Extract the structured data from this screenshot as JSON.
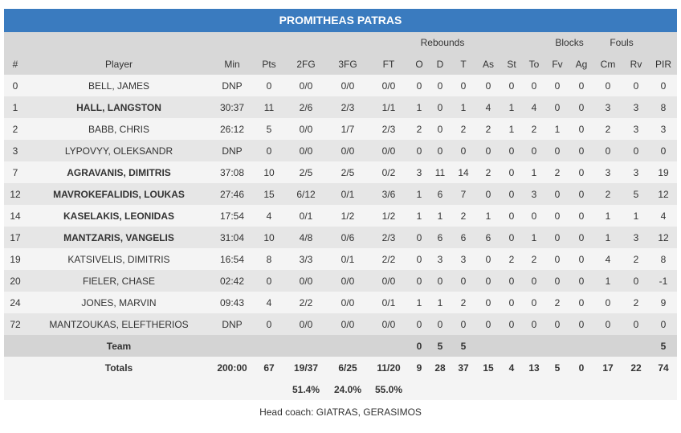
{
  "team_name": "PROMITHEAS PATRAS",
  "headers": {
    "group_rebounds": "Rebounds",
    "group_blocks": "Blocks",
    "group_fouls": "Fouls",
    "cols": [
      "#",
      "Player",
      "Min",
      "Pts",
      "2FG",
      "3FG",
      "FT",
      "O",
      "D",
      "T",
      "As",
      "St",
      "To",
      "Fv",
      "Ag",
      "Cm",
      "Rv",
      "PIR"
    ]
  },
  "players": [
    {
      "num": "0",
      "name": "BELL, JAMES",
      "bold": false,
      "min": "DNP",
      "pts": "0",
      "fg2": "0/0",
      "fg3": "0/0",
      "ft": "0/0",
      "o": "0",
      "d": "0",
      "t": "0",
      "as": "0",
      "st": "0",
      "to": "0",
      "fv": "0",
      "ag": "0",
      "cm": "0",
      "rv": "0",
      "pir": "0"
    },
    {
      "num": "1",
      "name": "HALL, LANGSTON",
      "bold": true,
      "min": "30:37",
      "pts": "11",
      "fg2": "2/6",
      "fg3": "2/3",
      "ft": "1/1",
      "o": "1",
      "d": "0",
      "t": "1",
      "as": "4",
      "st": "1",
      "to": "4",
      "fv": "0",
      "ag": "0",
      "cm": "3",
      "rv": "3",
      "pir": "8"
    },
    {
      "num": "2",
      "name": "BABB, CHRIS",
      "bold": false,
      "min": "26:12",
      "pts": "5",
      "fg2": "0/0",
      "fg3": "1/7",
      "ft": "2/3",
      "o": "2",
      "d": "0",
      "t": "2",
      "as": "2",
      "st": "1",
      "to": "2",
      "fv": "1",
      "ag": "0",
      "cm": "2",
      "rv": "3",
      "pir": "3"
    },
    {
      "num": "3",
      "name": "LYPOVYY, OLEKSANDR",
      "bold": false,
      "min": "DNP",
      "pts": "0",
      "fg2": "0/0",
      "fg3": "0/0",
      "ft": "0/0",
      "o": "0",
      "d": "0",
      "t": "0",
      "as": "0",
      "st": "0",
      "to": "0",
      "fv": "0",
      "ag": "0",
      "cm": "0",
      "rv": "0",
      "pir": "0"
    },
    {
      "num": "7",
      "name": "AGRAVANIS, DIMITRIS",
      "bold": true,
      "min": "37:08",
      "pts": "10",
      "fg2": "2/5",
      "fg3": "2/5",
      "ft": "0/2",
      "o": "3",
      "d": "11",
      "t": "14",
      "as": "2",
      "st": "0",
      "to": "1",
      "fv": "2",
      "ag": "0",
      "cm": "3",
      "rv": "3",
      "pir": "19"
    },
    {
      "num": "12",
      "name": "MAVROKEFALIDIS, LOUKAS",
      "bold": true,
      "min": "27:46",
      "pts": "15",
      "fg2": "6/12",
      "fg3": "0/1",
      "ft": "3/6",
      "o": "1",
      "d": "6",
      "t": "7",
      "as": "0",
      "st": "0",
      "to": "3",
      "fv": "0",
      "ag": "0",
      "cm": "2",
      "rv": "5",
      "pir": "12"
    },
    {
      "num": "14",
      "name": "KASELAKIS, LEONIDAS",
      "bold": true,
      "min": "17:54",
      "pts": "4",
      "fg2": "0/1",
      "fg3": "1/2",
      "ft": "1/2",
      "o": "1",
      "d": "1",
      "t": "2",
      "as": "1",
      "st": "0",
      "to": "0",
      "fv": "0",
      "ag": "0",
      "cm": "1",
      "rv": "1",
      "pir": "4"
    },
    {
      "num": "17",
      "name": "MANTZARIS, VANGELIS",
      "bold": true,
      "min": "31:04",
      "pts": "10",
      "fg2": "4/8",
      "fg3": "0/6",
      "ft": "2/3",
      "o": "0",
      "d": "6",
      "t": "6",
      "as": "6",
      "st": "0",
      "to": "1",
      "fv": "0",
      "ag": "0",
      "cm": "1",
      "rv": "3",
      "pir": "12"
    },
    {
      "num": "19",
      "name": "KATSIVELIS, DIMITRIS",
      "bold": false,
      "min": "16:54",
      "pts": "8",
      "fg2": "3/3",
      "fg3": "0/1",
      "ft": "2/2",
      "o": "0",
      "d": "3",
      "t": "3",
      "as": "0",
      "st": "2",
      "to": "2",
      "fv": "0",
      "ag": "0",
      "cm": "4",
      "rv": "2",
      "pir": "8"
    },
    {
      "num": "20",
      "name": "FIELER, CHASE",
      "bold": false,
      "min": "02:42",
      "pts": "0",
      "fg2": "0/0",
      "fg3": "0/0",
      "ft": "0/0",
      "o": "0",
      "d": "0",
      "t": "0",
      "as": "0",
      "st": "0",
      "to": "0",
      "fv": "0",
      "ag": "0",
      "cm": "1",
      "rv": "0",
      "pir": "-1"
    },
    {
      "num": "24",
      "name": "JONES, MARVIN",
      "bold": false,
      "min": "09:43",
      "pts": "4",
      "fg2": "2/2",
      "fg3": "0/0",
      "ft": "0/1",
      "o": "1",
      "d": "1",
      "t": "2",
      "as": "0",
      "st": "0",
      "to": "0",
      "fv": "2",
      "ag": "0",
      "cm": "0",
      "rv": "2",
      "pir": "9"
    },
    {
      "num": "72",
      "name": "MANTZOUKAS, ELEFTHERIOS",
      "bold": false,
      "min": "DNP",
      "pts": "0",
      "fg2": "0/0",
      "fg3": "0/0",
      "ft": "0/0",
      "o": "0",
      "d": "0",
      "t": "0",
      "as": "0",
      "st": "0",
      "to": "0",
      "fv": "0",
      "ag": "0",
      "cm": "0",
      "rv": "0",
      "pir": "0"
    }
  ],
  "team_row": {
    "label": "Team",
    "o": "0",
    "d": "5",
    "t": "5",
    "pir": "5"
  },
  "totals": {
    "label": "Totals",
    "min": "200:00",
    "pts": "67",
    "fg2": "19/37",
    "fg3": "6/25",
    "ft": "11/20",
    "o": "9",
    "d": "28",
    "t": "37",
    "as": "15",
    "st": "4",
    "to": "13",
    "fv": "5",
    "ag": "0",
    "cm": "17",
    "rv": "22",
    "pir": "74"
  },
  "percentages": {
    "fg2": "51.4%",
    "fg3": "24.0%",
    "ft": "55.0%"
  },
  "head_coach": "Head coach: GIATRAS, GERASIMOS",
  "colors": {
    "title_bar": "#3a7bbf",
    "header_bg": "#d8d8d8",
    "row_light": "#f4f4f4",
    "row_dark": "#e6e6e6"
  }
}
